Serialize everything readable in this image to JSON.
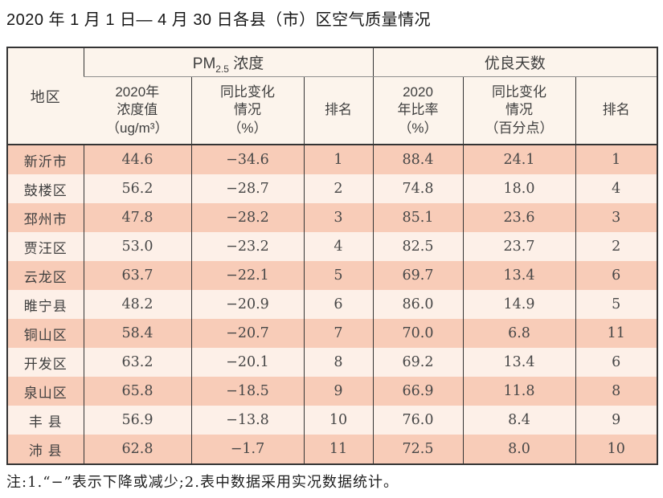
{
  "page": {
    "title": "2020 年 1 月 1 日— 4 月 30 日各县（市）区空气质量情况",
    "footnote": "注:1.“−”表示下降或减少;2.表中数据采用实况数据统计。"
  },
  "table": {
    "region_header": "地区",
    "groups": {
      "pm25": {
        "prefix": "PM",
        "sub": "2.5",
        "suffix": " 浓度"
      },
      "good_days": {
        "label": "优良天数"
      }
    },
    "sub_headers": [
      "2020年\n浓度值\n（ug/m³）",
      "同比变化\n情况\n（%）",
      "排名",
      "2020\n年比率\n（%）",
      "同比变化\n情况\n（百分点）",
      "排名"
    ],
    "rows": [
      [
        "新沂市",
        "44.6",
        "−34.6",
        "1",
        "88.4",
        "24.1",
        "1"
      ],
      [
        "鼓楼区",
        "56.2",
        "−28.7",
        "2",
        "74.8",
        "18.0",
        "4"
      ],
      [
        "邳州市",
        "47.8",
        "−28.2",
        "3",
        "85.1",
        "23.6",
        "3"
      ],
      [
        "贾汪区",
        "53.0",
        "−23.2",
        "4",
        "82.5",
        "23.7",
        "2"
      ],
      [
        "云龙区",
        "63.7",
        "−22.1",
        "5",
        "69.7",
        "13.4",
        "6"
      ],
      [
        "睢宁县",
        "48.2",
        "−20.9",
        "6",
        "86.0",
        "14.9",
        "5"
      ],
      [
        "铜山区",
        "58.4",
        "−20.7",
        "7",
        "70.0",
        "6.8",
        "11"
      ],
      [
        "开发区",
        "63.2",
        "−20.1",
        "8",
        "69.2",
        "13.4",
        "6"
      ],
      [
        "泉山区",
        "65.8",
        "−18.5",
        "9",
        "66.9",
        "11.8",
        "8"
      ],
      [
        "丰 县",
        "56.9",
        "−13.8",
        "10",
        "76.0",
        "8.4",
        "9"
      ],
      [
        "沛 县",
        "62.8",
        "−1.7",
        "11",
        "72.5",
        "8.0",
        "10"
      ]
    ]
  },
  "colors": {
    "row_salmon": "#f8ccb8",
    "row_light": "#fdf0e8",
    "header_bg": "#fcf4ec",
    "border_dark": "#343434",
    "divider_gray": "#8f8f8f",
    "text": "#3e3e3e"
  }
}
